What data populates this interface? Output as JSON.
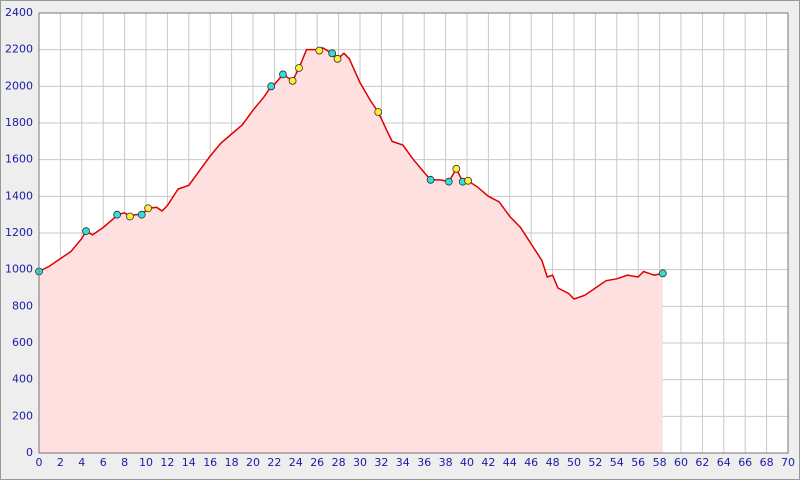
{
  "chart_data": {
    "type": "area",
    "x": [
      0,
      1,
      2,
      3,
      4,
      4.4,
      5,
      6,
      7,
      7.3,
      8,
      8.5,
      9,
      9.6,
      10.2,
      11,
      11.5,
      12,
      13,
      14,
      15,
      16,
      17,
      18,
      19,
      20,
      21,
      21.7,
      22,
      22.8,
      23.7,
      24.3,
      25,
      26,
      26.2,
      26.5,
      27.4,
      27.9,
      28.5,
      29,
      30,
      31,
      31.7,
      32.5,
      33,
      34,
      35,
      36,
      36.6,
      37.5,
      38.3,
      39,
      39.6,
      40.1,
      41,
      42,
      43,
      44,
      45,
      46,
      47,
      47.5,
      48,
      48.5,
      49.5,
      50,
      51,
      52,
      53,
      54,
      55,
      56,
      56.5,
      57,
      57.5,
      58.3
    ],
    "values": [
      990,
      1020,
      1060,
      1100,
      1170,
      1210,
      1190,
      1230,
      1280,
      1300,
      1310,
      1290,
      1300,
      1300,
      1335,
      1340,
      1320,
      1350,
      1440,
      1460,
      1540,
      1620,
      1690,
      1740,
      1790,
      1870,
      1940,
      2000,
      2010,
      2065,
      2030,
      2100,
      2200,
      2200,
      2195,
      2210,
      2180,
      2150,
      2180,
      2150,
      2020,
      1920,
      1860,
      1760,
      1700,
      1680,
      1600,
      1530,
      1490,
      1490,
      1480,
      1550,
      1480,
      1485,
      1450,
      1400,
      1370,
      1290,
      1230,
      1140,
      1050,
      960,
      970,
      900,
      870,
      840,
      860,
      900,
      940,
      950,
      970,
      960,
      990,
      980,
      970,
      980
    ],
    "color": "#dd0000",
    "fill": "#ffe0e0",
    "markers": {
      "x": [
        0,
        4.4,
        7.3,
        8.5,
        9.6,
        10.2,
        21.7,
        22.8,
        23.7,
        24.3,
        26.2,
        27.4,
        27.9,
        31.7,
        36.6,
        38.3,
        39,
        39.6,
        40.1,
        58.3
      ],
      "values": [
        990,
        1210,
        1300,
        1290,
        1300,
        1335,
        2000,
        2065,
        2030,
        2100,
        2195,
        2180,
        2150,
        1860,
        1490,
        1480,
        1550,
        1480,
        1485,
        980
      ],
      "colors": [
        "#33dddd",
        "#33dddd",
        "#33dddd",
        "#ffee33",
        "#33dddd",
        "#ffee33",
        "#33dddd",
        "#33dddd",
        "#ffee33",
        "#ffee33",
        "#ffee33",
        "#33dddd",
        "#ffee33",
        "#ffee33",
        "#33dddd",
        "#33dddd",
        "#ffee33",
        "#33dddd",
        "#ffee33",
        "#33dddd"
      ]
    },
    "xlim": [
      0,
      70
    ],
    "xticks": [
      0,
      2,
      4,
      6,
      8,
      10,
      12,
      14,
      16,
      18,
      20,
      22,
      24,
      26,
      28,
      30,
      32,
      34,
      36,
      38,
      40,
      42,
      44,
      46,
      48,
      50,
      52,
      54,
      56,
      58,
      60,
      62,
      64,
      66,
      68,
      70
    ],
    "ylim": [
      0,
      2400
    ],
    "yticks": [
      0,
      200,
      400,
      600,
      800,
      1000,
      1200,
      1400,
      1600,
      1800,
      2000,
      2200,
      2400
    ],
    "grid": true
  }
}
